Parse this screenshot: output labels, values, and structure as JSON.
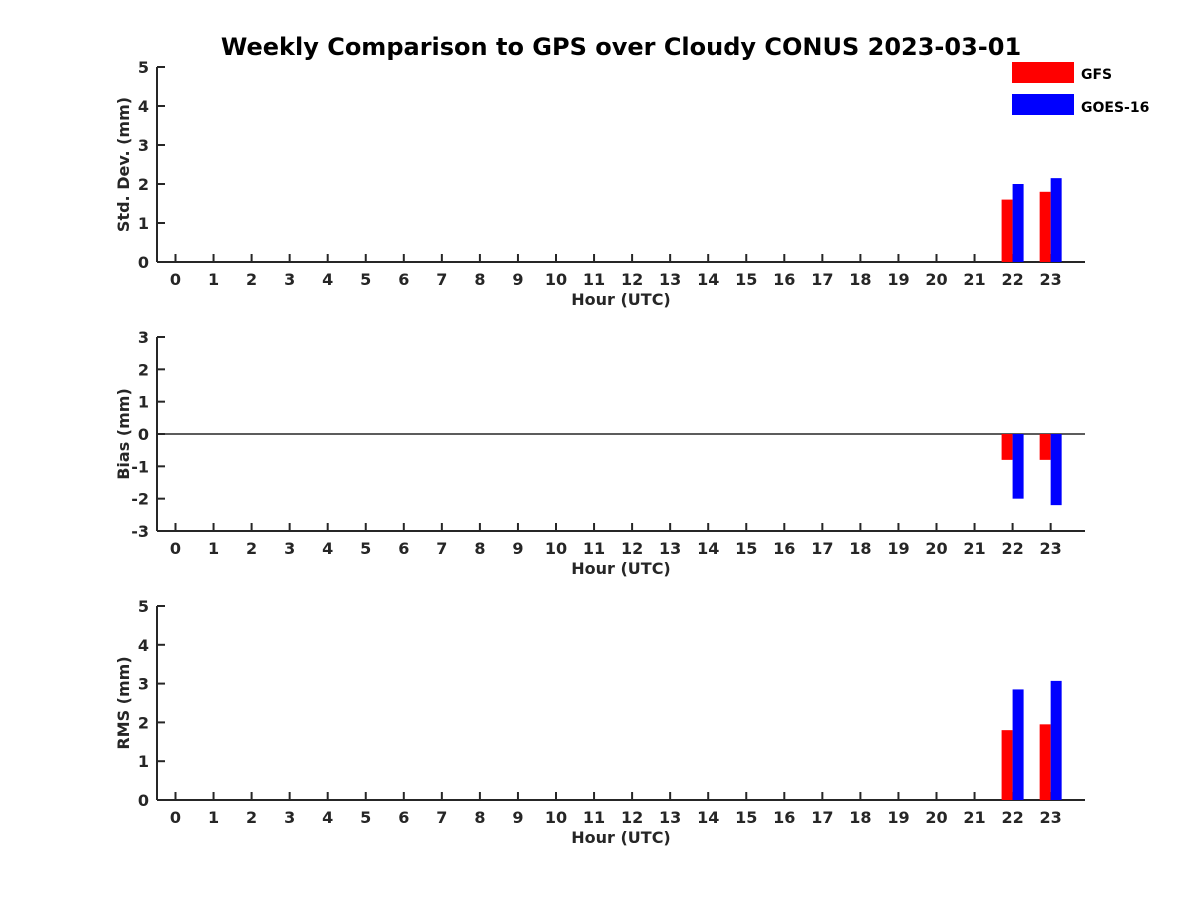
{
  "colors": {
    "GFS": "#ff0000",
    "GOES-16": "#0000ff",
    "axis": "#262626"
  },
  "chart_data": {
    "type": "bar",
    "title": "Weekly Comparison to GPS over Cloudy CONUS 2023-03-01",
    "legend": {
      "placement": "top-right",
      "entries": [
        "GFS",
        "GOES-16"
      ]
    },
    "categories": [
      "0",
      "1",
      "2",
      "3",
      "4",
      "5",
      "6",
      "7",
      "8",
      "9",
      "10",
      "11",
      "12",
      "13",
      "14",
      "15",
      "16",
      "17",
      "18",
      "19",
      "20",
      "21",
      "22",
      "23"
    ],
    "panels": [
      {
        "id": "std",
        "ylabel": "Std. Dev. (mm)",
        "xlabel": "Hour (UTC)",
        "ylim": [
          0,
          5
        ],
        "yticks": [
          "0",
          "1",
          "2",
          "3",
          "4",
          "5"
        ],
        "zero_line": false,
        "series": [
          {
            "name": "GFS",
            "values": [
              null,
              null,
              null,
              null,
              null,
              null,
              null,
              null,
              null,
              null,
              null,
              null,
              null,
              null,
              null,
              null,
              null,
              null,
              null,
              null,
              null,
              null,
              1.6,
              1.8
            ]
          },
          {
            "name": "GOES-16",
            "values": [
              null,
              null,
              null,
              null,
              null,
              null,
              null,
              null,
              null,
              null,
              null,
              null,
              null,
              null,
              null,
              null,
              null,
              null,
              null,
              null,
              null,
              null,
              2.0,
              2.15
            ]
          }
        ]
      },
      {
        "id": "bias",
        "ylabel": "Bias (mm)",
        "xlabel": "Hour (UTC)",
        "ylim": [
          -3,
          3
        ],
        "yticks": [
          "-3",
          "-2",
          "-1",
          "0",
          "1",
          "2",
          "3"
        ],
        "zero_line": true,
        "series": [
          {
            "name": "GFS",
            "values": [
              null,
              null,
              null,
              null,
              null,
              null,
              null,
              null,
              null,
              null,
              null,
              null,
              null,
              null,
              null,
              null,
              null,
              null,
              null,
              null,
              null,
              null,
              -0.8,
              -0.8
            ]
          },
          {
            "name": "GOES-16",
            "values": [
              null,
              null,
              null,
              null,
              null,
              null,
              null,
              null,
              null,
              null,
              null,
              null,
              null,
              null,
              null,
              null,
              null,
              null,
              null,
              null,
              null,
              null,
              -2.0,
              -2.2
            ]
          }
        ]
      },
      {
        "id": "rms",
        "ylabel": "RMS (mm)",
        "xlabel": "Hour (UTC)",
        "ylim": [
          0,
          5
        ],
        "yticks": [
          "0",
          "1",
          "2",
          "3",
          "4",
          "5"
        ],
        "zero_line": false,
        "series": [
          {
            "name": "GFS",
            "values": [
              null,
              null,
              null,
              null,
              null,
              null,
              null,
              null,
              null,
              null,
              null,
              null,
              null,
              null,
              null,
              null,
              null,
              null,
              null,
              null,
              null,
              null,
              1.8,
              1.95
            ]
          },
          {
            "name": "GOES-16",
            "values": [
              null,
              null,
              null,
              null,
              null,
              null,
              null,
              null,
              null,
              null,
              null,
              null,
              null,
              null,
              null,
              null,
              null,
              null,
              null,
              null,
              null,
              null,
              2.85,
              3.07
            ]
          }
        ]
      }
    ]
  }
}
